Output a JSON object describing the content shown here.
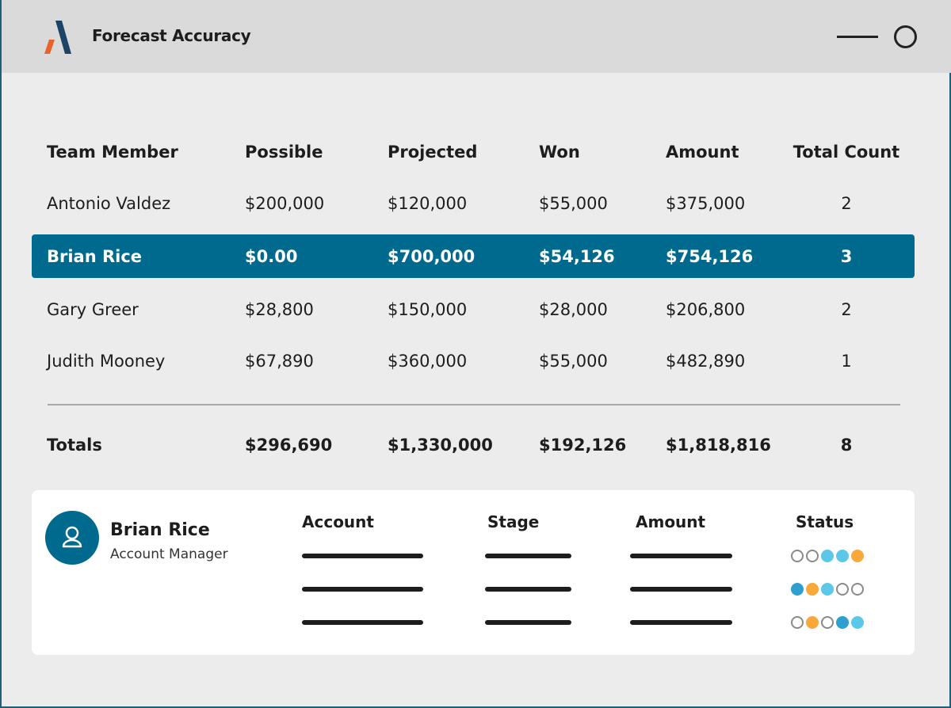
{
  "window": {
    "title": "Forecast Accuracy"
  },
  "table": {
    "headers": [
      "Team Member",
      "Possible",
      "Projected",
      "Won",
      "Amount",
      "Total Count"
    ],
    "rows": [
      [
        "Antonio Valdez",
        "$200,000",
        "$120,000",
        "$55,000",
        "$375,000",
        "2"
      ],
      [
        "Brian Rice",
        "$0.00",
        "$700,000",
        "$54,126",
        "$754,126",
        "3"
      ],
      [
        "Gary Greer",
        "$28,800",
        "$150,000",
        "$28,000",
        "$206,800",
        "2"
      ],
      [
        "Judith Mooney",
        "$67,890",
        "$360,000",
        "$55,000",
        "$482,890",
        "1"
      ]
    ],
    "selected_row": 1,
    "totals": [
      "Totals",
      "$296,690",
      "$1,330,000",
      "$192,126",
      "$1,818,816",
      "8"
    ]
  },
  "detail": {
    "name": "Brian Rice",
    "role": "Account Manager",
    "headers": [
      "Account",
      "Stage",
      "Amount",
      "Status"
    ],
    "status_rows": [
      [
        "empty",
        "empty",
        "light",
        "light",
        "orange"
      ],
      [
        "dark",
        "orange",
        "light",
        "empty",
        "empty"
      ],
      [
        "empty",
        "orange",
        "empty",
        "dark",
        "light"
      ]
    ]
  },
  "colors": {
    "accent": "#006a8e",
    "light": "#5bc8e8",
    "dark": "#2e9fcf",
    "orange": "#f9a83b",
    "logo_blue": "#1d4466",
    "logo_orange": "#e8622c"
  }
}
